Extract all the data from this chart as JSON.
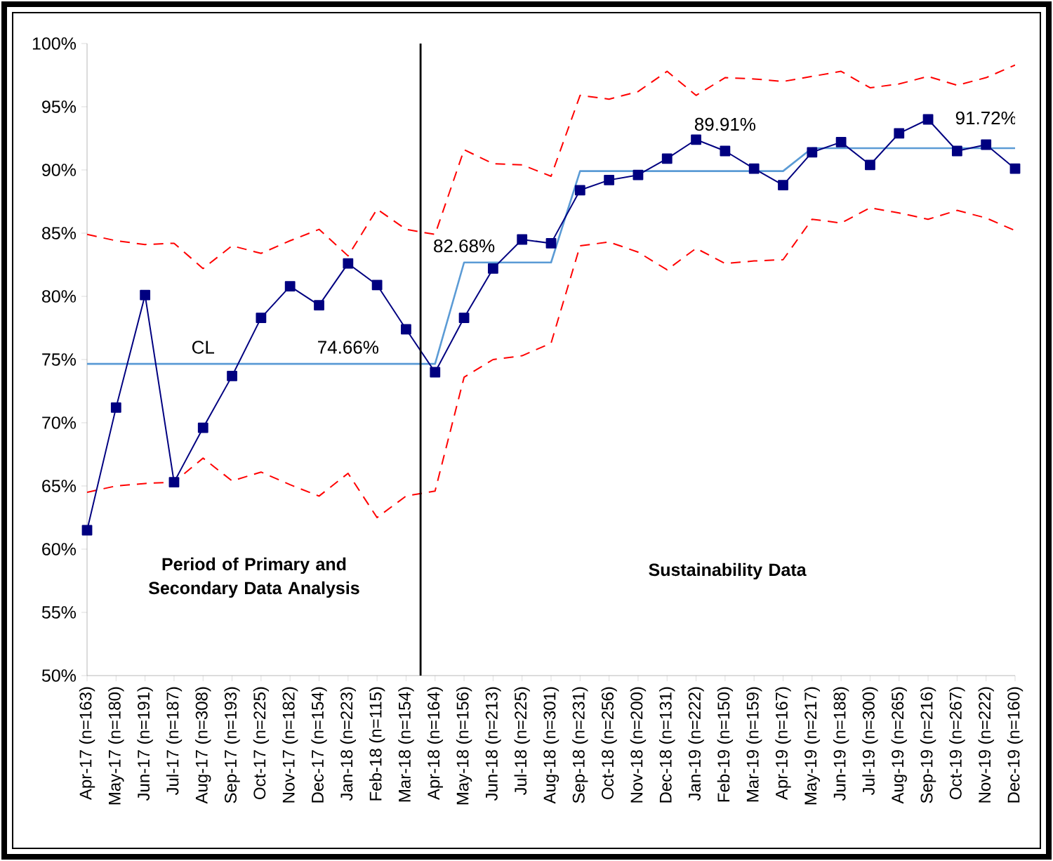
{
  "chart_data": {
    "type": "line",
    "categories": [
      "Apr-17 (n=163)",
      "May-17 (n=180)",
      "Jun-17 (n=191)",
      "Jul-17 (n=187)",
      "Aug-17 (n=308)",
      "Sep-17 (n=193)",
      "Oct-17 (n=225)",
      "Nov-17 (n=182)",
      "Dec-17 (n=154)",
      "Jan-18 (n=223)",
      "Feb-18 (n=115)",
      "Mar-18 (n=154)",
      "Apr-18 (n=164)",
      "May-18 (n=156)",
      "Jun-18 (n=213)",
      "Jul-18 (n=225)",
      "Aug-18 (n=301)",
      "Sep-18 (n=231)",
      "Oct-18 (n=256)",
      "Nov-18 (n=200)",
      "Dec-18 (n=131)",
      "Jan-19 (n=222)",
      "Feb-19 (n=150)",
      "Mar-19 (n=159)",
      "Apr-19 (n=167)",
      "May-19 (n=217)",
      "Jun-19 (n=188)",
      "Jul-19 (n=300)",
      "Aug-19 (n=265)",
      "Sep-19 (n=216)",
      "Oct-19 (n=267)",
      "Nov-19 (n=222)",
      "Dec-19 (n=160)"
    ],
    "series": [
      {
        "color": "#ff0000",
        "line_style": "dashed",
        "marker": "none",
        "values": [
          84.9,
          84.4,
          84.1,
          84.2,
          82.2,
          84.0,
          83.4,
          84.4,
          85.3,
          83.2,
          86.9,
          85.3,
          84.9,
          91.6,
          90.5,
          90.4,
          89.5,
          95.9,
          95.6,
          96.2,
          97.8,
          95.9,
          97.3,
          97.2,
          97.0,
          97.4,
          97.8,
          96.5,
          96.8,
          97.4,
          96.7,
          97.3,
          98.3
        ]
      },
      {
        "color": "#ff0000",
        "line_style": "dashed",
        "marker": "none",
        "values": [
          64.5,
          65.0,
          65.2,
          65.3,
          67.2,
          65.4,
          66.1,
          65.1,
          64.2,
          66.0,
          62.5,
          64.2,
          64.6,
          73.6,
          75.0,
          75.3,
          76.3,
          84.0,
          84.3,
          83.5,
          82.1,
          83.8,
          82.6,
          82.8,
          82.9,
          86.1,
          85.8,
          87.0,
          86.6,
          86.1,
          86.8,
          86.2,
          85.2
        ]
      },
      {
        "color": "#5b9bd5",
        "line_style": "solid",
        "marker": "none",
        "values": [
          74.66,
          74.66,
          74.66,
          74.66,
          74.66,
          74.66,
          74.66,
          74.66,
          74.66,
          74.66,
          74.66,
          74.66,
          74.66,
          82.68,
          82.68,
          82.68,
          82.68,
          89.91,
          89.91,
          89.91,
          89.91,
          89.91,
          89.91,
          89.91,
          89.91,
          91.72,
          91.72,
          91.72,
          91.72,
          91.72,
          91.72,
          91.72,
          91.72
        ]
      },
      {
        "color": "#000080",
        "line_style": "solid",
        "marker": "square",
        "values": [
          61.5,
          71.2,
          80.1,
          65.3,
          69.6,
          73.7,
          78.3,
          80.8,
          79.3,
          82.6,
          80.9,
          77.4,
          74.0,
          78.3,
          82.2,
          84.5,
          84.2,
          88.4,
          89.2,
          89.6,
          90.9,
          92.4,
          91.5,
          90.1,
          88.8,
          91.4,
          92.2,
          90.4,
          92.9,
          94.0,
          91.5,
          92.0,
          90.1
        ]
      }
    ],
    "ylim": [
      50,
      100
    ],
    "yticks": [
      {
        "value": 50,
        "label": "50%"
      },
      {
        "value": 55,
        "label": "55%"
      },
      {
        "value": 60,
        "label": "60%"
      },
      {
        "value": 65,
        "label": "65%"
      },
      {
        "value": 70,
        "label": "70%"
      },
      {
        "value": 75,
        "label": "75%"
      },
      {
        "value": 80,
        "label": "80%"
      },
      {
        "value": 85,
        "label": "85%"
      },
      {
        "value": 90,
        "label": "90%"
      },
      {
        "value": 95,
        "label": "95%"
      },
      {
        "value": 100,
        "label": "100%"
      }
    ],
    "annotations": [
      {
        "text": "CL",
        "x": "Aug-17 (n=308)",
        "y": 74.66
      },
      {
        "text": "74.66%",
        "x": "Jan-18 (n=223)",
        "y": 74.66
      },
      {
        "text": "82.68%",
        "x": "May-18 (n=156)",
        "y": 82.68
      },
      {
        "text": "89.91%",
        "x": "Feb-19 (n=150)",
        "y": 89.91
      },
      {
        "text": "91.72%",
        "x": "Nov-19 (n=222)",
        "y": 91.72
      },
      "**Period of Primary and Secondary Data Analysis**",
      "**Sustainability Data**"
    ],
    "grid": false
  }
}
